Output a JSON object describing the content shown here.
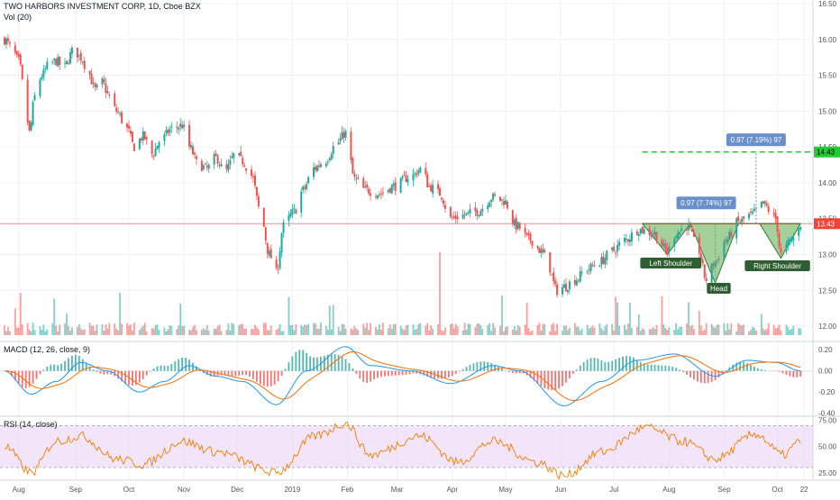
{
  "header": {
    "symbol_title": "TWO HARBORS INVESTMENT CORP, 1D, Cboe BZX",
    "volume_label": "Vol (20)"
  },
  "macd_panel": {
    "label": "MACD (12, 26, close, 9)"
  },
  "rsi_panel": {
    "label": "RSI (14, close)"
  },
  "colors": {
    "up": "#26a69a",
    "down": "#ef5350",
    "macd_line": "#2196f3",
    "signal_line": "#ff6d00",
    "rsi_line": "#f57c00",
    "rsi_band": "#e9d4f7",
    "pattern_fill": "#86c07a",
    "target_line": "#22cc33",
    "price_line": "#f44336",
    "callout": "#6b8fc9"
  },
  "chart_data": [
    {
      "type": "candlestick",
      "name": "price",
      "x_ticks": [
        "Aug",
        "Sep",
        "Oct",
        "Nov",
        "Dec",
        "2019",
        "Feb",
        "Mar",
        "Apr",
        "May",
        "Jun",
        "Jul",
        "Aug",
        "Sep",
        "Oct",
        "22"
      ],
      "y_ticks": [
        12.0,
        12.5,
        13.0,
        13.5,
        14.0,
        14.5,
        15.0,
        15.5,
        16.0,
        16.5
      ],
      "ylim": [
        11.8,
        16.55
      ],
      "anchors": [
        {
          "x": "Jul 24",
          "close": 16.0
        },
        {
          "x": "Jul 28",
          "close": 15.88
        },
        {
          "x": "Aug 1",
          "close": 15.7
        },
        {
          "x": "Aug 4",
          "close": 15.3
        },
        {
          "x": "Aug 7",
          "close": 14.7
        },
        {
          "x": "Aug 10",
          "close": 15.2
        },
        {
          "x": "Aug 14",
          "close": 15.5
        },
        {
          "x": "Aug 18",
          "close": 15.65
        },
        {
          "x": "Aug 22",
          "close": 15.7
        },
        {
          "x": "Aug 26",
          "close": 15.6
        },
        {
          "x": "Sep 1",
          "close": 15.85
        },
        {
          "x": "Sep 5",
          "close": 15.75
        },
        {
          "x": "Sep 9",
          "close": 15.55
        },
        {
          "x": "Sep 13",
          "close": 15.3
        },
        {
          "x": "Sep 17",
          "close": 15.4
        },
        {
          "x": "Sep 21",
          "close": 15.2
        },
        {
          "x": "Sep 25",
          "close": 15.0
        },
        {
          "x": "Oct 1",
          "close": 14.75
        },
        {
          "x": "Oct 5",
          "close": 14.5
        },
        {
          "x": "Oct 10",
          "close": 14.65
        },
        {
          "x": "Oct 15",
          "close": 14.4
        },
        {
          "x": "Oct 20",
          "close": 14.6
        },
        {
          "x": "Oct 26",
          "close": 14.75
        },
        {
          "x": "Nov 1",
          "close": 14.8
        },
        {
          "x": "Nov 5",
          "close": 14.5
        },
        {
          "x": "Nov 10",
          "close": 14.25
        },
        {
          "x": "Nov 15",
          "close": 14.2
        },
        {
          "x": "Nov 20",
          "close": 14.35
        },
        {
          "x": "Nov 25",
          "close": 14.15
        },
        {
          "x": "Dec 1",
          "close": 14.4
        },
        {
          "x": "Dec 5",
          "close": 14.3
        },
        {
          "x": "Dec 10",
          "close": 14.1
        },
        {
          "x": "Dec 15",
          "close": 13.6
        },
        {
          "x": "Dec 20",
          "close": 13.0
        },
        {
          "x": "Dec 24",
          "close": 12.75
        },
        {
          "x": "Dec 28",
          "close": 13.4
        },
        {
          "x": "Jan 3",
          "close": 13.6
        },
        {
          "x": "Jan 8",
          "close": 13.9
        },
        {
          "x": "Jan 14",
          "close": 14.2
        },
        {
          "x": "Jan 20",
          "close": 14.3
        },
        {
          "x": "Jan 27",
          "close": 14.55
        },
        {
          "x": "Feb 1",
          "close": 14.7
        },
        {
          "x": "Feb 6",
          "close": 14.05
        },
        {
          "x": "Feb 12",
          "close": 13.9
        },
        {
          "x": "Feb 20",
          "close": 13.85
        },
        {
          "x": "Feb 28",
          "close": 13.95
        },
        {
          "x": "Mar 10",
          "close": 14.1
        },
        {
          "x": "Mar 16",
          "close": 14.2
        },
        {
          "x": "Mar 20",
          "close": 13.95
        },
        {
          "x": "Mar 26",
          "close": 13.85
        },
        {
          "x": "Apr 1",
          "close": 13.5
        },
        {
          "x": "Apr 8",
          "close": 13.55
        },
        {
          "x": "Apr 16",
          "close": 13.6
        },
        {
          "x": "Apr 25",
          "close": 13.8
        },
        {
          "x": "May 1",
          "close": 13.75
        },
        {
          "x": "May 8",
          "close": 13.4
        },
        {
          "x": "May 16",
          "close": 13.2
        },
        {
          "x": "May 24",
          "close": 13.0
        },
        {
          "x": "May 31",
          "close": 12.5
        },
        {
          "x": "Jun 4",
          "close": 12.55
        },
        {
          "x": "Jun 10",
          "close": 12.65
        },
        {
          "x": "Jun 17",
          "close": 12.8
        },
        {
          "x": "Jun 24",
          "close": 12.9
        },
        {
          "x": "Jul 1",
          "close": 13.05
        },
        {
          "x": "Jul 8",
          "close": 13.2
        },
        {
          "x": "Jul 16",
          "close": 13.35
        },
        {
          "x": "Jul 24",
          "close": 13.3
        },
        {
          "x": "Aug 1",
          "close": 13.05
        },
        {
          "x": "Aug 6",
          "close": 13.3
        },
        {
          "x": "Aug 12",
          "close": 13.4
        },
        {
          "x": "Aug 18",
          "close": 13.1
        },
        {
          "x": "Aug 23",
          "close": 12.65
        },
        {
          "x": "Aug 28",
          "close": 12.9
        },
        {
          "x": "Sep 3",
          "close": 13.2
        },
        {
          "x": "Sep 10",
          "close": 13.45
        },
        {
          "x": "Sep 17",
          "close": 13.55
        },
        {
          "x": "Sep 24",
          "close": 13.7
        },
        {
          "x": "Oct 1",
          "close": 13.5
        },
        {
          "x": "Oct 4",
          "close": 13.0
        },
        {
          "x": "Oct 10",
          "close": 13.2
        },
        {
          "x": "Oct 15",
          "close": 13.43
        }
      ],
      "last_price": "13.43",
      "target_price": "14.43",
      "pattern": {
        "neckline": 13.43,
        "left_shoulder": {
          "x": "Aug 1",
          "low": 13.0,
          "label": "Left Shoulder"
        },
        "head": {
          "x": "Aug 28",
          "low": 12.6,
          "label": "Head"
        },
        "right_shoulder": {
          "x": "Oct 4",
          "low": 12.95,
          "label": "Right Shoulder"
        }
      },
      "callouts": [
        {
          "text": "0.97 (7.74%) 97",
          "x": "Aug 28"
        },
        {
          "text": "0.97 (7.19%) 97",
          "x": "Sep 20"
        }
      ]
    },
    {
      "type": "bar",
      "name": "Vol (20)",
      "note": "daily volume bars, colored by candle direction; spike in late March"
    },
    {
      "type": "line",
      "name": "MACD (12, 26, close, 9)",
      "y_ticks": [
        "0.20",
        "0.00",
        "-0.20",
        "-0.40"
      ],
      "ylim": [
        -0.42,
        0.27
      ],
      "macd_anchors": [
        {
          "x": "Jul 24",
          "v": 0.0
        },
        {
          "x": "Aug 8",
          "v": -0.22
        },
        {
          "x": "Aug 22",
          "v": -0.1
        },
        {
          "x": "Sep 5",
          "v": 0.08
        },
        {
          "x": "Sep 20",
          "v": 0.0
        },
        {
          "x": "Oct 8",
          "v": -0.2
        },
        {
          "x": "Oct 22",
          "v": -0.1
        },
        {
          "x": "Nov 5",
          "v": 0.05
        },
        {
          "x": "Nov 20",
          "v": -0.05
        },
        {
          "x": "Dec 5",
          "v": -0.1
        },
        {
          "x": "Dec 24",
          "v": -0.32
        },
        {
          "x": "Jan 10",
          "v": 0.0
        },
        {
          "x": "Feb 1",
          "v": 0.23
        },
        {
          "x": "Feb 15",
          "v": 0.05
        },
        {
          "x": "Mar 10",
          "v": 0.0
        },
        {
          "x": "Apr 1",
          "v": -0.12
        },
        {
          "x": "Apr 25",
          "v": 0.05
        },
        {
          "x": "May 10",
          "v": 0.0
        },
        {
          "x": "Jun 4",
          "v": -0.33
        },
        {
          "x": "Jun 25",
          "v": -0.1
        },
        {
          "x": "Jul 15",
          "v": 0.1
        },
        {
          "x": "Aug 5",
          "v": 0.16
        },
        {
          "x": "Aug 28",
          "v": -0.05
        },
        {
          "x": "Sep 15",
          "v": 0.1
        },
        {
          "x": "Oct 1",
          "v": 0.08
        },
        {
          "x": "Oct 15",
          "v": 0.0
        }
      ]
    },
    {
      "type": "line",
      "name": "RSI (14, close)",
      "y_ticks": [
        "75.00",
        "50.00",
        "25.00"
      ],
      "ylim": [
        18,
        78
      ],
      "band": [
        30,
        70
      ],
      "rsi_anchors": [
        {
          "x": "Jul 24",
          "v": 50
        },
        {
          "x": "Aug 8",
          "v": 25
        },
        {
          "x": "Aug 22",
          "v": 55
        },
        {
          "x": "Sep 5",
          "v": 60
        },
        {
          "x": "Sep 25",
          "v": 38
        },
        {
          "x": "Oct 10",
          "v": 33
        },
        {
          "x": "Nov 1",
          "v": 55
        },
        {
          "x": "Nov 20",
          "v": 45
        },
        {
          "x": "Dec 24",
          "v": 25
        },
        {
          "x": "Jan 15",
          "v": 60
        },
        {
          "x": "Feb 1",
          "v": 72
        },
        {
          "x": "Feb 15",
          "v": 42
        },
        {
          "x": "Mar 15",
          "v": 60
        },
        {
          "x": "Apr 5",
          "v": 35
        },
        {
          "x": "Apr 25",
          "v": 55
        },
        {
          "x": "May 20",
          "v": 35
        },
        {
          "x": "Jun 4",
          "v": 22
        },
        {
          "x": "Jun 25",
          "v": 45
        },
        {
          "x": "Jul 20",
          "v": 68
        },
        {
          "x": "Aug 10",
          "v": 55
        },
        {
          "x": "Aug 28",
          "v": 38
        },
        {
          "x": "Sep 20",
          "v": 62
        },
        {
          "x": "Oct 5",
          "v": 42
        },
        {
          "x": "Oct 15",
          "v": 55
        }
      ]
    }
  ]
}
